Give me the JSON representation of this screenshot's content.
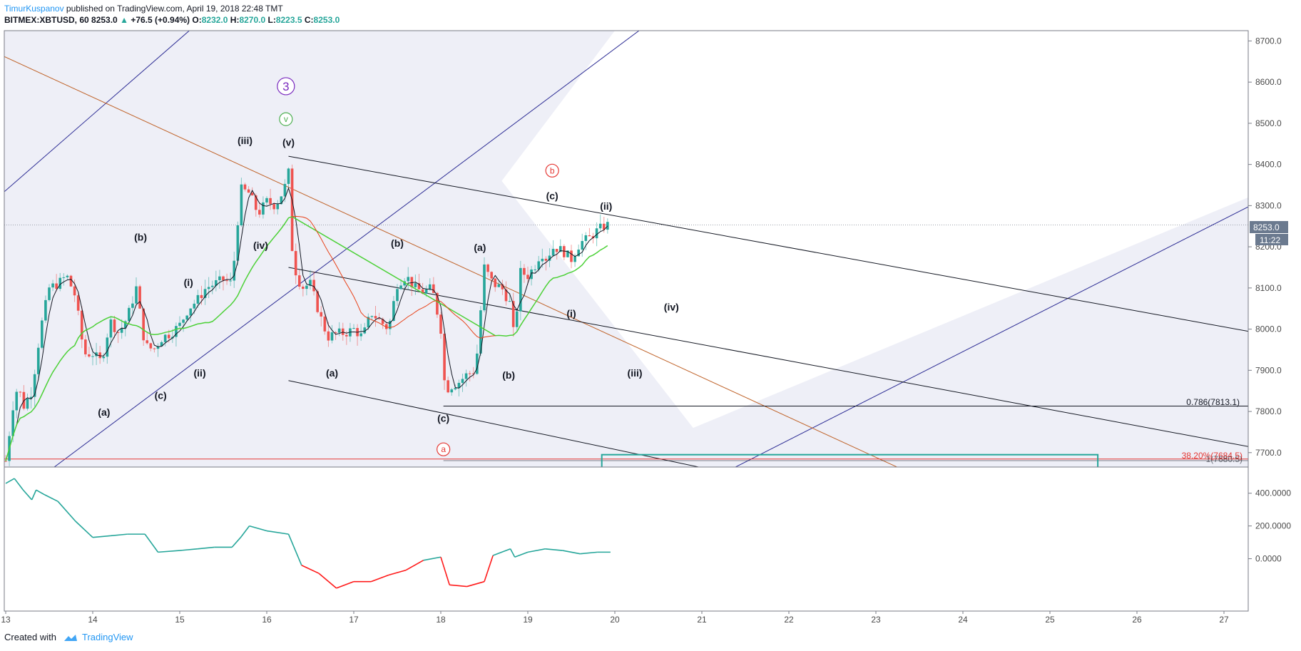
{
  "header": {
    "author": "TimurKuspanov",
    "published": " published on TradingView.com, April 19, 2018 22:48 TMT",
    "symbol": "BITMEX:XBTUSD, 60",
    "last": "8253.0",
    "change_arrow": "▲",
    "change": "+76.5 (+0.94%)",
    "o_label": "O:",
    "o_val": "8232.0",
    "h_label": "H:",
    "h_val": "8270.0",
    "l_label": "L:",
    "l_val": "8223.5",
    "c_label": "C:",
    "c_val": "8253.0"
  },
  "footer": {
    "created_with": "Created with",
    "brand": "TradingView"
  },
  "price_badge": {
    "price": "8253.0",
    "countdown": "11:22"
  },
  "fib_labels": {
    "f786": "0.786(7813.1)",
    "f382": "38.20%(7684.5)",
    "f1": "1(7680.5)"
  },
  "colors": {
    "up": "#26a69a",
    "down": "#ef5350",
    "ma_green": "#4cd137",
    "ma_red": "#e84118",
    "channel": "#2c2c94",
    "orange": "#c0642b",
    "osc": "#26a69a",
    "osc_neg": "#ff1a1a",
    "zone_fill": "#eeeff7"
  },
  "chart_data": {
    "type": "candlestick",
    "symbol": "BITMEX:XBTUSD",
    "interval": "60",
    "y_ticks": [
      8700.0,
      8600.0,
      8500.0,
      8400.0,
      8300.0,
      8200.0,
      8100.0,
      8000.0,
      7900.0,
      7800.0,
      7700.0
    ],
    "y_tick_labels": [
      "8700.0",
      "8600.0",
      "8500.0",
      "8400.0",
      "8300.0",
      "8200.0",
      "8100.0",
      "8000.0",
      "7900.0",
      "7800.0",
      "7700.0"
    ],
    "ylim": [
      7665,
      8725
    ],
    "x_ticks": [
      "13",
      "14",
      "15",
      "16",
      "17",
      "18",
      "19",
      "20",
      "21",
      "22",
      "23",
      "24",
      "25",
      "26",
      "27"
    ],
    "osc_ticks": [
      "400.0000",
      "200.0000",
      "0.0000"
    ],
    "osc_ylim": [
      -320,
      560
    ],
    "close_path": [
      {
        "t": 0.0,
        "p": 7680
      },
      {
        "t": 0.05,
        "p": 7760
      },
      {
        "t": 0.1,
        "p": 7840
      },
      {
        "t": 0.15,
        "p": 7860
      },
      {
        "t": 0.2,
        "p": 7810
      },
      {
        "t": 0.3,
        "p": 7850
      },
      {
        "t": 0.4,
        "p": 8000
      },
      {
        "t": 0.5,
        "p": 8100
      },
      {
        "t": 0.6,
        "p": 8110
      },
      {
        "t": 0.7,
        "p": 8130
      },
      {
        "t": 0.8,
        "p": 8080
      },
      {
        "t": 0.9,
        "p": 7940
      },
      {
        "t": 1.0,
        "p": 7940
      },
      {
        "t": 1.1,
        "p": 7920
      },
      {
        "t": 1.2,
        "p": 8020
      },
      {
        "t": 1.3,
        "p": 7990
      },
      {
        "t": 1.4,
        "p": 8030
      },
      {
        "t": 1.5,
        "p": 8100
      },
      {
        "t": 1.6,
        "p": 7960
      },
      {
        "t": 1.7,
        "p": 7950
      },
      {
        "t": 1.8,
        "p": 7980
      },
      {
        "t": 1.9,
        "p": 7990
      },
      {
        "t": 2.0,
        "p": 8010
      },
      {
        "t": 2.1,
        "p": 8050
      },
      {
        "t": 2.2,
        "p": 8070
      },
      {
        "t": 2.3,
        "p": 8100
      },
      {
        "t": 2.4,
        "p": 8110
      },
      {
        "t": 2.5,
        "p": 8120
      },
      {
        "t": 2.6,
        "p": 8110
      },
      {
        "t": 2.7,
        "p": 8340
      },
      {
        "t": 2.8,
        "p": 8330
      },
      {
        "t": 2.9,
        "p": 8280
      },
      {
        "t": 3.0,
        "p": 8310
      },
      {
        "t": 3.1,
        "p": 8300
      },
      {
        "t": 3.2,
        "p": 8340
      },
      {
        "t": 3.25,
        "p": 8380
      },
      {
        "t": 3.3,
        "p": 8160
      },
      {
        "t": 3.4,
        "p": 8100
      },
      {
        "t": 3.5,
        "p": 8110
      },
      {
        "t": 3.6,
        "p": 8040
      },
      {
        "t": 3.7,
        "p": 7980
      },
      {
        "t": 3.8,
        "p": 7990
      },
      {
        "t": 3.9,
        "p": 7990
      },
      {
        "t": 4.0,
        "p": 8000
      },
      {
        "t": 4.1,
        "p": 7980
      },
      {
        "t": 4.2,
        "p": 8040
      },
      {
        "t": 4.3,
        "p": 8020
      },
      {
        "t": 4.4,
        "p": 8000
      },
      {
        "t": 4.5,
        "p": 8110
      },
      {
        "t": 4.6,
        "p": 8130
      },
      {
        "t": 4.7,
        "p": 8100
      },
      {
        "t": 4.8,
        "p": 8090
      },
      {
        "t": 4.9,
        "p": 8100
      },
      {
        "t": 5.0,
        "p": 8000
      },
      {
        "t": 5.05,
        "p": 7850
      },
      {
        "t": 5.1,
        "p": 7860
      },
      {
        "t": 5.2,
        "p": 7870
      },
      {
        "t": 5.3,
        "p": 7890
      },
      {
        "t": 5.4,
        "p": 7900
      },
      {
        "t": 5.5,
        "p": 8150
      },
      {
        "t": 5.6,
        "p": 8110
      },
      {
        "t": 5.7,
        "p": 8100
      },
      {
        "t": 5.8,
        "p": 8060
      },
      {
        "t": 5.85,
        "p": 7960
      },
      {
        "t": 5.9,
        "p": 8140
      },
      {
        "t": 6.0,
        "p": 8130
      },
      {
        "t": 6.1,
        "p": 8160
      },
      {
        "t": 6.15,
        "p": 8190
      },
      {
        "t": 6.2,
        "p": 8170
      },
      {
        "t": 6.3,
        "p": 8200
      },
      {
        "t": 6.4,
        "p": 8190
      },
      {
        "t": 6.5,
        "p": 8170
      },
      {
        "t": 6.6,
        "p": 8210
      },
      {
        "t": 6.7,
        "p": 8220
      },
      {
        "t": 6.8,
        "p": 8240
      },
      {
        "t": 6.9,
        "p": 8253
      }
    ],
    "osc_path": [
      {
        "t": 0.0,
        "p": 460
      },
      {
        "t": 0.1,
        "p": 490
      },
      {
        "t": 0.2,
        "p": 420
      },
      {
        "t": 0.3,
        "p": 360
      },
      {
        "t": 0.35,
        "p": 420
      },
      {
        "t": 0.45,
        "p": 390
      },
      {
        "t": 0.6,
        "p": 350
      },
      {
        "t": 0.8,
        "p": 230
      },
      {
        "t": 1.0,
        "p": 130
      },
      {
        "t": 1.2,
        "p": 140
      },
      {
        "t": 1.4,
        "p": 150
      },
      {
        "t": 1.6,
        "p": 150
      },
      {
        "t": 1.75,
        "p": 40
      },
      {
        "t": 2.0,
        "p": 50
      },
      {
        "t": 2.2,
        "p": 60
      },
      {
        "t": 2.4,
        "p": 70
      },
      {
        "t": 2.6,
        "p": 70
      },
      {
        "t": 2.7,
        "p": 130
      },
      {
        "t": 2.8,
        "p": 200
      },
      {
        "t": 3.0,
        "p": 170
      },
      {
        "t": 3.25,
        "p": 150
      },
      {
        "t": 3.4,
        "p": -40
      },
      {
        "t": 3.6,
        "p": -90
      },
      {
        "t": 3.8,
        "p": -180
      },
      {
        "t": 4.0,
        "p": -140
      },
      {
        "t": 4.2,
        "p": -140
      },
      {
        "t": 4.4,
        "p": -100
      },
      {
        "t": 4.6,
        "p": -70
      },
      {
        "t": 4.8,
        "p": -10
      },
      {
        "t": 5.0,
        "p": 10
      },
      {
        "t": 5.1,
        "p": -160
      },
      {
        "t": 5.3,
        "p": -170
      },
      {
        "t": 5.5,
        "p": -140
      },
      {
        "t": 5.6,
        "p": 20
      },
      {
        "t": 5.8,
        "p": 60
      },
      {
        "t": 5.85,
        "p": 10
      },
      {
        "t": 6.0,
        "p": 40
      },
      {
        "t": 6.2,
        "p": 60
      },
      {
        "t": 6.4,
        "p": 50
      },
      {
        "t": 6.6,
        "p": 30
      },
      {
        "t": 6.8,
        "p": 40
      },
      {
        "t": 6.95,
        "p": 40
      }
    ],
    "wave_labels": [
      {
        "text": "(a)",
        "t": 1.13,
        "p": 7790
      },
      {
        "text": "(b)",
        "t": 1.55,
        "p": 8215
      },
      {
        "text": "(c)",
        "t": 1.78,
        "p": 7830
      },
      {
        "text": "(i)",
        "t": 2.1,
        "p": 8105
      },
      {
        "text": "(ii)",
        "t": 2.23,
        "p": 7885
      },
      {
        "text": "(iii)",
        "t": 2.75,
        "p": 8450
      },
      {
        "text": "(iv)",
        "t": 2.93,
        "p": 8195
      },
      {
        "text": "(v)",
        "t": 3.25,
        "p": 8445
      },
      {
        "text": "(a)",
        "t": 3.75,
        "p": 7885
      },
      {
        "text": "(b)",
        "t": 4.5,
        "p": 8200
      },
      {
        "text": "(c)",
        "t": 5.03,
        "p": 7775
      },
      {
        "text": "(a)",
        "t": 5.45,
        "p": 8190
      },
      {
        "text": "(b)",
        "t": 5.78,
        "p": 7880
      },
      {
        "text": "(c)",
        "t": 6.28,
        "p": 8315
      },
      {
        "text": "(ii)",
        "t": 6.9,
        "p": 8290
      },
      {
        "text": "(i)",
        "t": 6.5,
        "p": 8030
      },
      {
        "text": "(iii)",
        "t": 7.23,
        "p": 7885
      },
      {
        "text": "(iv)",
        "t": 7.65,
        "p": 8045
      }
    ],
    "circle_labels": [
      {
        "text": "3",
        "t": 3.22,
        "p": 8590,
        "color": "#7b2cbf",
        "r": 12
      },
      {
        "text": "v",
        "t": 3.22,
        "p": 8510,
        "color": "#4caf50",
        "r": 9
      },
      {
        "text": "b",
        "t": 6.28,
        "p": 8385,
        "color": "#e53935",
        "r": 9
      },
      {
        "text": "a",
        "t": 5.03,
        "p": 7708,
        "color": "#e53935",
        "r": 9
      }
    ]
  }
}
